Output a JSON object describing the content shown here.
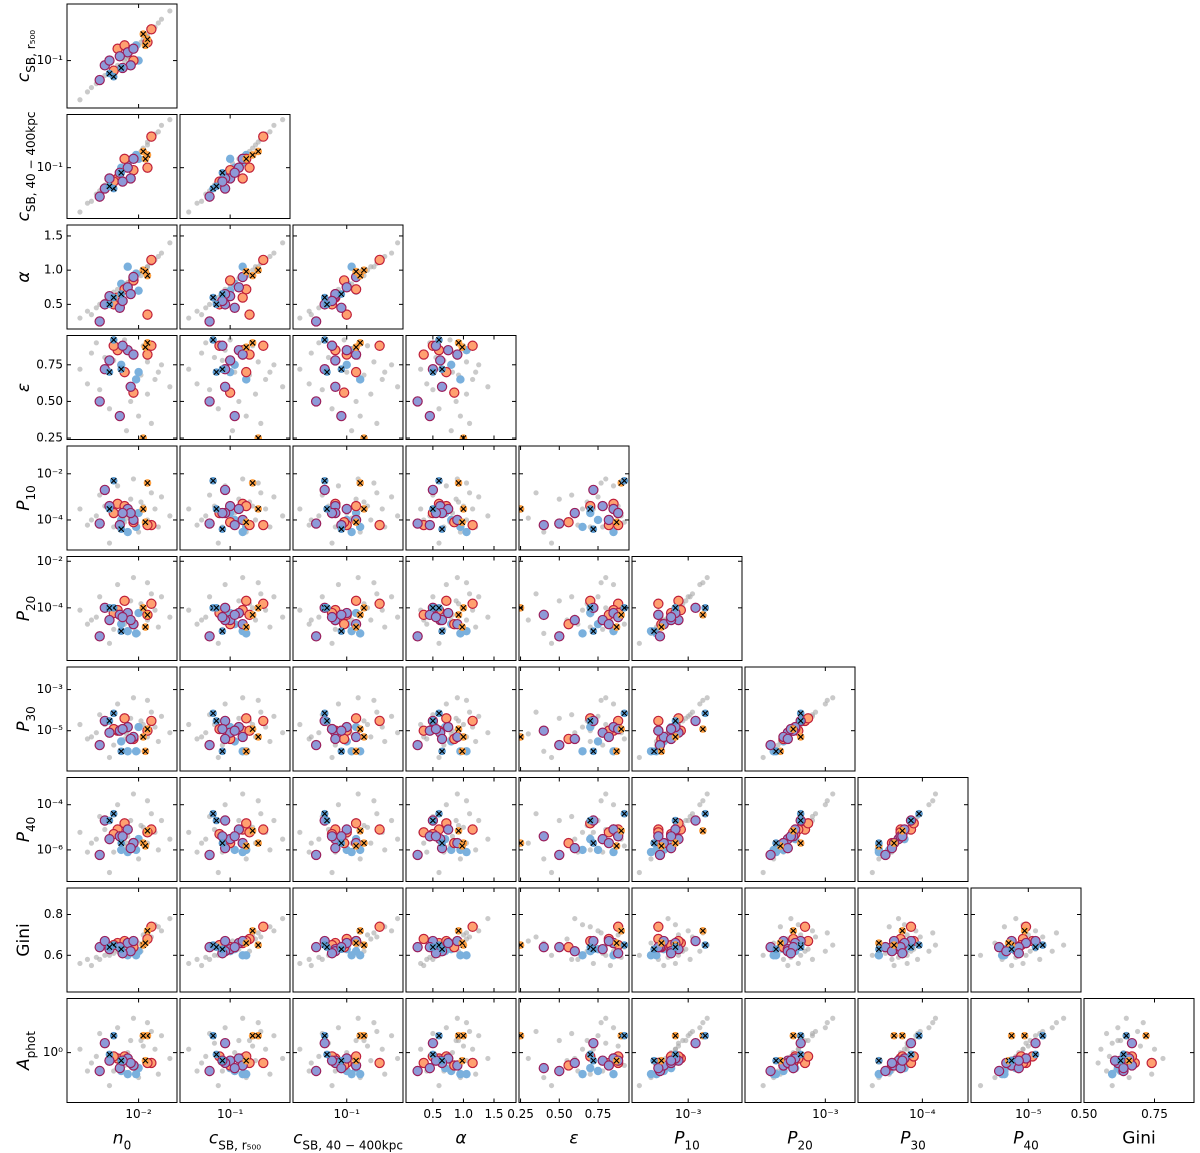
{
  "chart_data": {
    "type": "scatter-matrix",
    "variables": [
      {
        "symbol": "n",
        "subscript": "0",
        "log": true,
        "xlim": [
          0.0023,
          0.022
        ],
        "xticks": [
          {
            "value": 0.01,
            "label": "10⁻²"
          }
        ]
      },
      {
        "symbol": "c",
        "subscript": "SB, r₅₀₀",
        "log": true,
        "xlim": [
          0.035,
          0.35
        ],
        "ylim": [
          0.035,
          0.35
        ],
        "xticks": [
          {
            "value": 0.1,
            "label": "10⁻¹"
          }
        ],
        "yticks": [
          {
            "value": 0.1,
            "label": "10⁻¹"
          }
        ]
      },
      {
        "symbol": "c",
        "subscript": "SB, 40 − 400kpc",
        "log": true,
        "xlim": [
          0.035,
          0.3
        ],
        "ylim": [
          0.035,
          0.3
        ],
        "xticks": [
          {
            "value": 0.1,
            "label": "10⁻¹"
          }
        ],
        "yticks": [
          {
            "value": 0.1,
            "label": "10⁻¹"
          }
        ]
      },
      {
        "symbol": "α",
        "log": false,
        "xlim": [
          0.06,
          1.86
        ],
        "ylim": [
          0.14,
          1.66
        ],
        "xticks": [
          0.5,
          {
            "value": 1,
            "label": "1.0"
          },
          1.5
        ],
        "yticks": [
          0.5,
          {
            "value": 1,
            "label": "1.0"
          },
          1.5
        ]
      },
      {
        "symbol": "ε",
        "log": false,
        "xlim": [
          0.24,
          0.95
        ],
        "ylim": [
          0.24,
          0.95
        ],
        "xticks": [
          0.25,
          {
            "value": 0.5,
            "label": "0.50"
          },
          0.75
        ],
        "yticks": [
          0.25,
          {
            "value": 0.5,
            "label": "0.50"
          },
          0.75
        ]
      },
      {
        "symbol": "P",
        "subscript": "10",
        "log": true,
        "xlim": [
          5e-06,
          0.16
        ],
        "ylim": [
          5e-06,
          0.16
        ],
        "xticks": [
          {
            "value": 0.001,
            "label": "10⁻³"
          }
        ],
        "yticks": [
          {
            "value": 0.01,
            "label": "10⁻²"
          },
          {
            "value": 0.0001,
            "label": "10⁻⁴"
          }
        ]
      },
      {
        "symbol": "P",
        "subscript": "20",
        "log": true,
        "xlim": [
          5.5e-07,
          0.016
        ],
        "ylim": [
          5.5e-07,
          0.016
        ],
        "xticks": [
          {
            "value": 0.001,
            "label": "10⁻³"
          }
        ],
        "yticks": [
          {
            "value": 0.01,
            "label": "10⁻²"
          },
          {
            "value": 0.0001,
            "label": "10⁻⁴"
          }
        ]
      },
      {
        "symbol": "P",
        "subscript": "30",
        "log": true,
        "xlim": [
          1.1e-07,
          0.0125
        ],
        "ylim": [
          1.1e-07,
          0.0125
        ],
        "xticks": [
          {
            "value": 0.0001,
            "label": "10⁻⁴"
          }
        ],
        "yticks": [
          {
            "value": 0.001,
            "label": "10⁻³"
          },
          {
            "value": 1e-05,
            "label": "10⁻⁵"
          }
        ]
      },
      {
        "symbol": "P",
        "subscript": "40",
        "log": true,
        "xlim": [
          4e-08,
          0.0016
        ],
        "ylim": [
          4e-08,
          0.0016
        ],
        "xticks": [
          {
            "value": 1e-05,
            "label": "10⁻⁵"
          }
        ],
        "yticks": [
          {
            "value": 0.0001,
            "label": "10⁻⁴"
          },
          {
            "value": 1e-06,
            "label": "10⁻⁶"
          }
        ]
      },
      {
        "text": "Gini",
        "log": false,
        "xlim": [
          0.5,
          0.89
        ],
        "ylim": [
          0.42,
          0.93
        ],
        "xticks": [
          {
            "value": 0.5,
            "label": "0.50"
          },
          0.75
        ],
        "yticks": [
          0.6,
          0.8
        ]
      },
      {
        "symbol": "A",
        "subscript": "phot",
        "log": true,
        "ylim": [
          0.25,
          4.5
        ],
        "yticks": [
          {
            "value": 1,
            "label": "10⁰"
          }
        ]
      }
    ],
    "groups": [
      {
        "marker": "dot",
        "color": "#a6a6a6",
        "points": [
          [
            0.0035,
            0.05,
            0.048,
            0.4,
            0.62,
            6e-05,
            2e-05,
            4e-06,
            8e-07,
            0.58,
            0.6
          ],
          [
            0.005,
            0.072,
            0.07,
            0.55,
            0.8,
            0.0004,
            0.0001,
            2e-05,
            8e-06,
            0.6,
            1.3
          ],
          [
            0.008,
            0.11,
            0.1,
            0.82,
            0.7,
            0.0002,
            5e-05,
            1e-05,
            4e-06,
            0.64,
            1.0
          ],
          [
            0.012,
            0.17,
            0.16,
            1.05,
            0.55,
            0.0001,
            3e-05,
            5e-06,
            2e-06,
            0.68,
            0.8
          ],
          [
            0.016,
            0.25,
            0.24,
            1.25,
            0.75,
            0.001,
            0.0003,
            5e-05,
            2e-05,
            0.72,
            1.6
          ],
          [
            0.0065,
            0.09,
            0.085,
            0.72,
            0.85,
            0.003,
            0.001,
            0.0002,
            0.0001,
            0.62,
            2.0
          ],
          [
            0.01,
            0.14,
            0.13,
            0.95,
            0.4,
            3e-05,
            8e-06,
            1e-06,
            4e-07,
            0.66,
            0.5
          ],
          [
            0.0042,
            0.06,
            0.058,
            0.45,
            0.9,
            0.00015,
            4e-05,
            8e-06,
            3e-06,
            0.59,
            0.9
          ],
          [
            0.014,
            0.21,
            0.2,
            1.15,
            0.65,
            0.0003,
            8e-05,
            1.5e-05,
            6e-06,
            0.75,
            1.1
          ],
          [
            0.0085,
            0.12,
            0.12,
            0.88,
            0.5,
            0.0008,
            0.0002,
            4e-05,
            2e-05,
            0.63,
            1.4
          ],
          [
            0.006,
            0.085,
            0.08,
            0.68,
            0.78,
            5e-05,
            1.2e-05,
            2e-06,
            8e-07,
            0.61,
            0.6
          ],
          [
            0.011,
            0.16,
            0.15,
            1.0,
            0.88,
            0.0004,
            0.0001,
            2e-05,
            1e-05,
            0.7,
            1.2
          ],
          [
            0.003,
            0.042,
            0.04,
            0.3,
            0.72,
            0.0003,
            8e-05,
            2e-05,
            6e-06,
            0.56,
            1.1
          ],
          [
            0.019,
            0.3,
            0.27,
            1.4,
            0.6,
            0.00015,
            4e-05,
            8e-06,
            3e-06,
            0.78,
            0.85
          ],
          [
            0.009,
            0.13,
            0.125,
            0.9,
            0.8,
            0.006,
            0.002,
            0.0004,
            0.0003,
            0.65,
            2.6
          ],
          [
            0.0055,
            0.078,
            0.075,
            0.6,
            0.45,
            1e-05,
            3e-06,
            5e-07,
            1e-07,
            0.6,
            0.4
          ],
          [
            0.013,
            0.19,
            0.18,
            1.1,
            0.35,
            0.0015,
            0.0004,
            8e-05,
            4e-05,
            0.69,
            1.8
          ],
          [
            0.0075,
            0.1,
            0.095,
            0.78,
            0.92,
            8e-05,
            2e-05,
            4e-06,
            1.5e-06,
            0.64,
            0.7
          ],
          [
            0.015,
            0.23,
            0.21,
            1.2,
            0.7,
            5e-05,
            1.5e-05,
            3e-06,
            1e-06,
            0.74,
            0.55
          ],
          [
            0.0045,
            0.065,
            0.062,
            0.5,
            0.58,
            0.0012,
            0.0003,
            6e-05,
            3e-05,
            0.58,
            1.7
          ],
          [
            0.0078,
            0.105,
            0.11,
            0.8,
            0.3,
            0.00012,
            3e-05,
            7e-06,
            2e-06,
            0.67,
            0.85
          ],
          [
            0.0105,
            0.15,
            0.14,
            0.92,
            0.68,
            0.0006,
            0.00015,
            3e-05,
            1.2e-05,
            0.62,
            1.4
          ],
          [
            0.0038,
            0.055,
            0.05,
            0.35,
            0.83,
            0.0001,
            3e-05,
            5e-06,
            2e-06,
            0.55,
            0.75
          ],
          [
            0.012,
            0.18,
            0.17,
            1.05,
            0.77,
            0.004,
            0.0012,
            0.0003,
            0.00015,
            0.71,
            2.3
          ]
        ]
      },
      {
        "marker": "circle",
        "color": "#7ab0dd",
        "points": [
          [
            0.0095,
            0.14,
            0.13,
            0.95,
            0.65,
            5e-05,
            8e-06,
            1e-06,
            1e-06,
            0.6,
            0.55
          ],
          [
            0.007,
            0.11,
            0.1,
            0.8,
            0.75,
            0.0001,
            2e-05,
            3e-06,
            1e-06,
            0.63,
            0.6
          ],
          [
            0.008,
            0.13,
            0.11,
            1.05,
            0.85,
            3e-05,
            1e-05,
            1e-06,
            8e-07,
            0.6,
            0.55
          ],
          [
            0.01,
            0.1,
            0.12,
            0.7,
            0.7,
            0.0002,
            6e-05,
            1.5e-05,
            3e-06,
            0.62,
            0.65
          ]
        ]
      },
      {
        "marker": "circle",
        "color": "#ffa070",
        "edgecolor": "#c0203a",
        "points": [
          [
            0.013,
            0.2,
            0.19,
            1.15,
            0.88,
            6e-05,
            0.00015,
            3e-05,
            8e-06,
            0.74,
            0.75
          ],
          [
            0.0065,
            0.13,
            0.08,
            0.6,
            0.85,
            0.0005,
            8e-05,
            1e-05,
            8e-06,
            0.66,
            0.85
          ],
          [
            0.012,
            0.15,
            0.1,
            0.35,
            0.82,
            6e-05,
            5e-05,
            1e-05,
            6e-06,
            0.68,
            0.75
          ],
          [
            0.0075,
            0.14,
            0.12,
            0.72,
            0.7,
            0.0004,
            0.0002,
            4e-05,
            1.5e-05,
            0.67,
            0.9
          ],
          [
            0.009,
            0.1,
            0.095,
            0.85,
            0.56,
            8e-05,
            2e-05,
            4e-06,
            2e-06,
            0.64,
            0.7
          ],
          [
            0.006,
            0.08,
            0.075,
            0.5,
            0.88,
            0.0002,
            6e-05,
            1.2e-05,
            5e-06,
            0.65,
            0.9
          ]
        ]
      },
      {
        "marker": "circle",
        "color": "#8d9ad8",
        "edgecolor": "#9a1f5c",
        "points": [
          [
            0.0045,
            0.065,
            0.055,
            0.25,
            0.5,
            7e-05,
            6e-06,
            2e-06,
            6e-07,
            0.64,
            0.6
          ],
          [
            0.005,
            0.09,
            0.065,
            0.5,
            0.72,
            0.002,
            0.0001,
            3e-05,
            2e-05,
            0.67,
            1.3
          ],
          [
            0.0055,
            0.1,
            0.08,
            0.62,
            0.78,
            0.0004,
            3e-05,
            8e-06,
            3e-06,
            0.63,
            0.8
          ],
          [
            0.008,
            0.12,
            0.1,
            0.75,
            0.85,
            0.0003,
            6e-05,
            1.5e-05,
            8e-06,
            0.66,
            0.85
          ],
          [
            0.009,
            0.13,
            0.12,
            0.9,
            0.82,
            0.0001,
            2e-05,
            5e-06,
            2e-06,
            0.67,
            0.7
          ],
          [
            0.0085,
            0.09,
            0.08,
            0.65,
            0.6,
            0.0002,
            3e-05,
            4e-06,
            1.2e-06,
            0.62,
            0.75
          ],
          [
            0.0068,
            0.11,
            0.09,
            0.45,
            0.4,
            6e-05,
            5e-05,
            1e-05,
            4e-06,
            0.64,
            0.65
          ],
          [
            0.0072,
            0.085,
            0.075,
            0.55,
            0.88,
            0.0002,
            4e-05,
            1.2e-05,
            4e-06,
            0.61,
            0.8
          ]
        ]
      },
      {
        "marker": "x",
        "color": "#ffa040",
        "points": [
          [
            0.012,
            0.16,
            0.13,
            0.92,
            0.9,
            0.004,
            5e-05,
            1.2e-05,
            7e-06,
            0.72,
            1.6
          ],
          [
            0.011,
            0.18,
            0.14,
            1.0,
            0.25,
            0.0003,
            0.0001,
            5e-06,
            2e-06,
            0.65,
            1.6
          ],
          [
            0.0115,
            0.14,
            0.12,
            0.98,
            0.87,
            8e-05,
            1.5e-05,
            1e-06,
            1.5e-06,
            0.66,
            0.8
          ]
        ]
      },
      {
        "marker": "x",
        "color": "#5a9ad0",
        "points": [
          [
            0.006,
            0.07,
            0.065,
            0.6,
            0.92,
            0.005,
            0.0001,
            7e-05,
            4e-05,
            0.65,
            1.6
          ],
          [
            0.0055,
            0.075,
            0.068,
            0.5,
            0.7,
            0.0003,
            0.0001,
            3e-05,
            2e-05,
            0.64,
            0.95
          ],
          [
            0.007,
            0.085,
            0.09,
            0.65,
            0.72,
            4e-05,
            1e-05,
            1e-06,
            2e-06,
            0.63,
            0.8
          ]
        ]
      }
    ]
  }
}
